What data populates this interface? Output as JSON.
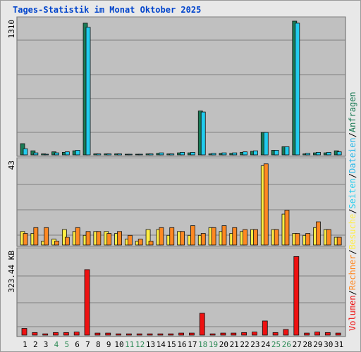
{
  "title": "Tages-Statistik im Monat Oktober 2025",
  "chart_data": {
    "type": "bar",
    "title": "Tages-Statistik im Monat Oktober 2025",
    "days": [
      "1",
      "2",
      "3",
      "4",
      "5",
      "6",
      "7",
      "8",
      "9",
      "10",
      "11",
      "12",
      "13",
      "14",
      "15",
      "16",
      "17",
      "18",
      "19",
      "20",
      "21",
      "22",
      "23",
      "24",
      "25",
      "26",
      "27",
      "28",
      "29",
      "30",
      "31"
    ],
    "weekend_days": [
      "4",
      "5",
      "11",
      "12",
      "18",
      "19",
      "25",
      "26"
    ],
    "colors": {
      "weekday_label": "#000000",
      "weekend_label": "#2e8b57",
      "anfragen": "#1a7a55",
      "dateien": "#22ccee",
      "seiten": "#2ab8e8",
      "besuche": "#ffee44",
      "rechner": "#ff8822",
      "volumen": "#ee1111"
    },
    "panels": [
      {
        "axis_label": "1310",
        "max": 1310,
        "series": [
          {
            "name": "Anfragen",
            "values": [
              110,
              40,
              10,
              30,
              25,
              40,
              1290,
              10,
              10,
              10,
              5,
              5,
              10,
              15,
              10,
              20,
              20,
              430,
              10,
              15,
              15,
              25,
              35,
              220,
              45,
              80,
              1310,
              10,
              20,
              20,
              40
            ]
          },
          {
            "name": "Dateien",
            "values": [
              60,
              20,
              5,
              20,
              30,
              45,
              1250,
              10,
              10,
              10,
              5,
              5,
              10,
              20,
              10,
              25,
              25,
              420,
              15,
              20,
              20,
              30,
              40,
              220,
              45,
              80,
              1290,
              15,
              25,
              25,
              30
            ]
          }
        ]
      },
      {
        "axis_label": "43",
        "max": 43,
        "series": [
          {
            "name": "Seiten",
            "values": [
              7,
              6,
              2,
              3,
              8,
              7,
              5,
              7,
              7,
              6,
              3,
              2,
              8,
              8,
              5,
              7,
              5,
              5,
              9,
              7,
              6,
              7,
              8,
              41,
              8,
              16,
              6,
              5,
              9,
              8,
              4
            ]
          },
          {
            "name": "Besuche",
            "values": [
              6,
              9,
              9,
              2,
              4,
              9,
              7,
              7,
              6,
              7,
              5,
              3,
              2,
              9,
              9,
              7,
              10,
              6,
              9,
              10,
              9,
              8,
              8,
              42,
              8,
              18,
              6,
              6,
              12,
              8,
              4
            ]
          }
        ]
      },
      {
        "axis_label": "323.44 KB",
        "max": 323.44,
        "series": [
          {
            "name": "Volumen",
            "values": [
              26,
              10,
              5,
              10,
              10,
              12,
              255,
              8,
              8,
              5,
              5,
              5,
              5,
              5,
              5,
              8,
              8,
              85,
              5,
              8,
              8,
              10,
              12,
              55,
              10,
              22,
              306,
              8,
              12,
              10,
              8
            ]
          }
        ]
      }
    ],
    "legend": [
      {
        "name": "Anfragen"
      },
      {
        "name": "/"
      },
      {
        "name": "Dateien"
      },
      {
        "name": "/"
      },
      {
        "name": "Seiten"
      },
      {
        "name": "/"
      },
      {
        "name": "Besuche"
      },
      {
        "name": "/"
      },
      {
        "name": "Rechner"
      },
      {
        "name": "/"
      },
      {
        "name": "Volumen"
      }
    ]
  }
}
